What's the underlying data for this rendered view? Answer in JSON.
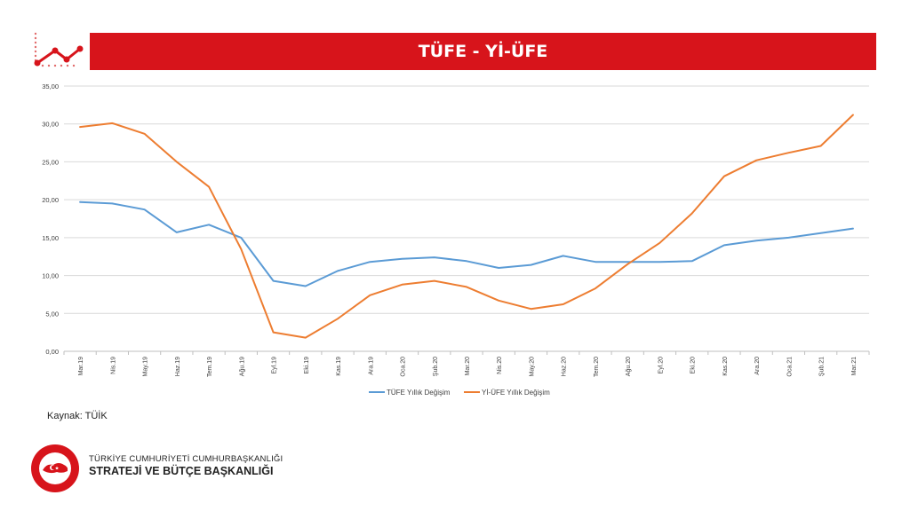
{
  "header": {
    "title": "TÜFE - Yİ-ÜFE"
  },
  "source": "Kaynak: TÜİK",
  "footer": {
    "line1": "TÜRKİYE CUMHURİYETİ CUMHURBAŞKANLIĞI",
    "line2": "STRATEJİ VE BÜTÇE BAŞKANLIĞI"
  },
  "colors": {
    "banner": "#d7141b",
    "tufe": "#5b9bd5",
    "yiufe": "#ed7d31"
  },
  "icons": {
    "header": "chart-trend-icon",
    "footer": "emblem-seal-icon"
  },
  "chart_data": {
    "type": "line",
    "title": "",
    "xlabel": "",
    "ylabel": "",
    "ylim": [
      0,
      35
    ],
    "yticks": [
      0,
      5,
      10,
      15,
      20,
      25,
      30,
      35
    ],
    "ytick_labels": [
      "0,00",
      "5,00",
      "10,00",
      "15,00",
      "20,00",
      "25,00",
      "30,00",
      "35,00"
    ],
    "grid": true,
    "legend_position": "bottom",
    "categories": [
      "Mar.19",
      "Nis.19",
      "May.19",
      "Haz.19",
      "Tem.19",
      "Ağu.19",
      "Eyl.19",
      "Eki.19",
      "Kas.19",
      "Ara.19",
      "Oca.20",
      "Şub.20",
      "Mar.20",
      "Nis.20",
      "May.20",
      "Haz.20",
      "Tem.20",
      "Ağu.20",
      "Eyl.20",
      "Eki.20",
      "Kas.20",
      "Ara.20",
      "Oca.21",
      "Şub.21",
      "Mar.21"
    ],
    "series": [
      {
        "name": "TÜFE Yıllık Değişim",
        "color": "#5b9bd5",
        "values": [
          19.7,
          19.5,
          18.7,
          15.7,
          16.7,
          15.0,
          9.3,
          8.6,
          10.6,
          11.8,
          12.2,
          12.4,
          11.9,
          11.0,
          11.4,
          12.6,
          11.8,
          11.8,
          11.8,
          11.9,
          14.0,
          14.6,
          15.0,
          15.6,
          16.2
        ]
      },
      {
        "name": "Yİ-ÜFE Yıllık Değişim",
        "color": "#ed7d31",
        "values": [
          29.6,
          30.1,
          28.7,
          25.0,
          21.7,
          13.5,
          2.5,
          1.8,
          4.3,
          7.4,
          8.8,
          9.3,
          8.5,
          6.7,
          5.6,
          6.2,
          8.3,
          11.5,
          14.3,
          18.2,
          23.1,
          25.2,
          26.2,
          27.1,
          31.2
        ]
      }
    ]
  }
}
